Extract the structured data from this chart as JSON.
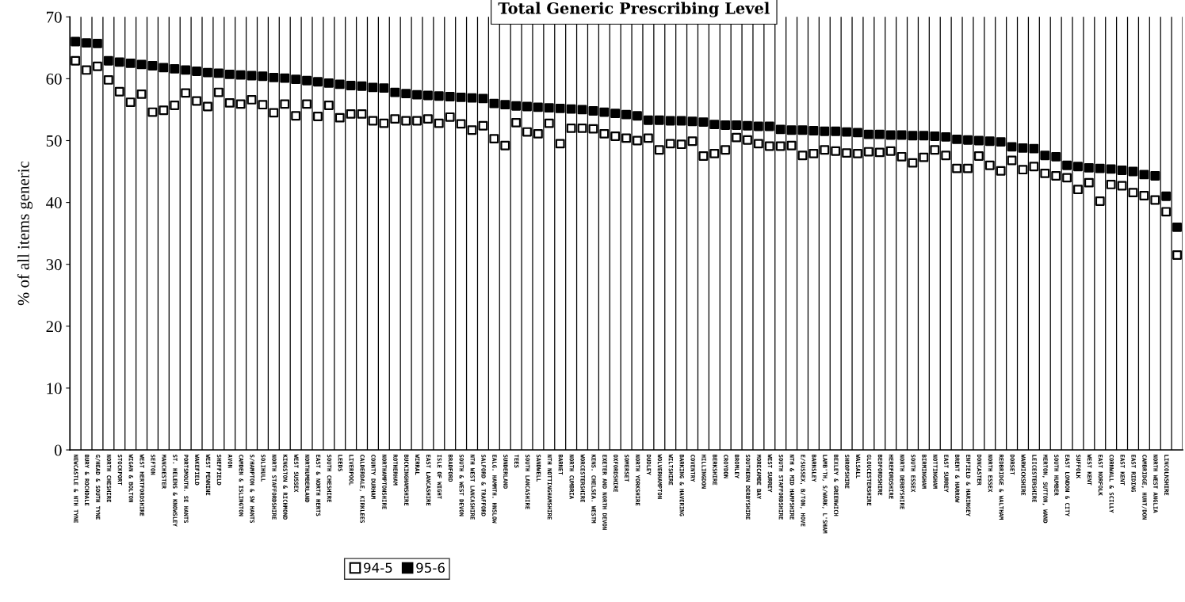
{
  "chart_data": {
    "type": "scatter",
    "title": "Total Generic Prescribing Level",
    "ylabel": "% of all items generic",
    "categories": [
      "NEWCASTLE & NTH TYNE",
      "BURY & ROCHDALE",
      "G/HEAD & SOUTH TYNE",
      "NORTH CHESHIRE",
      "STOCKPORT",
      "WIGAN & BOLTON",
      "WEST HERTFORDSHIRE",
      "SEFTON",
      "MANCHESTER",
      "ST. HELENS & KNOWSLEY",
      "PORTSMOUTH. SE HANTS",
      "WAKEFIELD",
      "WEST PENNINE",
      "SHEFFIELD",
      "AVON",
      "CAMDEN & ISLINGTON",
      "S/HAMPTON & SW HANTS",
      "SOLIHULL",
      "NORTH STAFFORDSHIRE",
      "KINGSTON & RICHMOND",
      "WEST SUSSEX",
      "NORTHUMBERLAND",
      "EAST & NORTH HERTS",
      "SOUTH CHESHIRE",
      "LEEDS",
      "LIVERPOOL",
      "CALDERDALE, KIRKLEES",
      "COUNTY DURHAM",
      "NORTHAMPTONSHIRE",
      "ROTHERHAM",
      "BUCKINGHAMSHIRE",
      "WIRRAL",
      "EAST LANCASHIRE",
      "ISLE OF WIGHT",
      "BRADFORD",
      "SOUTH & WEST DEVON",
      "NTH WEST LANCASHIRE",
      "SALFORD & TRAFFORD",
      "EALG. HAMMTH. HNSLOW",
      "SUNDERLAND",
      "TEES",
      "SOUTH LANCASHIRE",
      "SANDWELL",
      "NTH NOTTINGHAMSHIRE",
      "BARNET",
      "NORTH CUMBRIA",
      "WORCESTERSHIRE",
      "KENS. CHELSEA. WESTM",
      "EXETER AND NORTH DEVON",
      "OXFORDSHIRE",
      "SOMERSET",
      "NORTH YORKSHIRE",
      "DUDLEY",
      "WOLVERHAMPTON",
      "WILTSHIRE",
      "BARKING & HAVERING",
      "COVENTRY",
      "HILLINGDON",
      "BERKSHIRE",
      "CROYDON",
      "BROMLEY",
      "SOUTHERN DERBYSHIRE",
      "MORECAMBE BAY",
      "WEST SURREY",
      "SOUTH STAFFORDSHIRE",
      "NTH & MID HAMPSHIRE",
      "E/SUSSEX, B/TON, HOVE",
      "BARNSLEY",
      "LAMB'TH, S/WARK, L'SHAM",
      "BEXLEY & GREENWICH",
      "SHROPSHIRE",
      "WALSALL",
      "GLOUCESTERSHIRE",
      "BEDFORDSHIRE",
      "HEREFORDSHIRE",
      "NORTH DERBYSHIRE",
      "SOUTH ESSEX",
      "BIRMINGHAM",
      "NOTTINGHAM",
      "EAST SURREY",
      "BRENT & HARROW",
      "ENFIELD & HARINGEY",
      "DONCASTER",
      "NORTH ESSEX",
      "REDBRIDGE & WALTHAM",
      "DORSET",
      "WARWICKSHIRE",
      "LEICESTERSHIRE",
      "MERTON, SUTTON, WAND",
      "SOUTH HUMBER",
      "EAST LONDON & CITY",
      "SUFFOLK",
      "WEST KENT",
      "EAST NORFOLK",
      "CORNWALL & SCILLY",
      "EAST KENT",
      "EAST RIDING",
      "CAMBRIDGE, HUNT/DON",
      "NORTH WEST ANGLIA",
      "LINCOLNSHIRE",
      null
    ],
    "series": [
      {
        "name": "94-5",
        "color": "#ffffff",
        "marker": "square",
        "values": [
          62.9,
          61.4,
          62.0,
          59.8,
          57.9,
          56.2,
          57.5,
          54.6,
          54.9,
          55.7,
          57.7,
          56.4,
          55.5,
          57.8,
          56.1,
          55.9,
          56.6,
          55.8,
          54.5,
          55.9,
          54.0,
          55.9,
          53.9,
          55.7,
          53.7,
          54.3,
          54.3,
          53.2,
          52.8,
          53.5,
          53.2,
          53.2,
          53.5,
          52.8,
          53.8,
          52.7,
          51.7,
          52.4,
          50.3,
          49.2,
          52.9,
          51.4,
          51.1,
          52.8,
          49.5,
          52.0,
          52.0,
          51.9,
          51.1,
          50.7,
          50.4,
          50.0,
          50.4,
          48.5,
          49.5,
          49.4,
          49.9,
          47.5,
          47.9,
          48.5,
          50.5,
          50.1,
          49.5,
          49.1,
          49.1,
          49.2,
          47.6,
          47.9,
          48.5,
          48.3,
          48.0,
          47.9,
          48.2,
          48.1,
          48.3,
          47.4,
          46.4,
          47.3,
          48.5,
          47.6,
          45.5,
          45.5,
          47.5,
          46.0,
          45.1,
          46.8,
          45.3,
          45.8,
          44.7,
          44.3,
          44.0,
          42.1,
          43.2,
          40.2,
          42.9,
          42.7,
          41.6,
          41.1,
          40.4,
          38.5,
          31.5
        ]
      },
      {
        "name": "95-6",
        "color": "#000000",
        "marker": "square",
        "values": [
          66.0,
          65.8,
          65.7,
          62.9,
          62.7,
          62.5,
          62.3,
          62.1,
          61.8,
          61.6,
          61.4,
          61.2,
          61.0,
          60.9,
          60.7,
          60.6,
          60.5,
          60.4,
          60.2,
          60.1,
          59.9,
          59.7,
          59.5,
          59.3,
          59.1,
          58.9,
          58.8,
          58.6,
          58.5,
          57.8,
          57.6,
          57.4,
          57.3,
          57.2,
          57.1,
          57.0,
          56.9,
          56.8,
          56.0,
          55.8,
          55.6,
          55.5,
          55.4,
          55.3,
          55.2,
          55.1,
          55.0,
          54.8,
          54.6,
          54.4,
          54.2,
          54.0,
          53.3,
          53.3,
          53.2,
          53.2,
          53.1,
          53.0,
          52.6,
          52.5,
          52.5,
          52.4,
          52.3,
          52.3,
          51.8,
          51.7,
          51.7,
          51.6,
          51.5,
          51.5,
          51.4,
          51.3,
          51.0,
          51.0,
          50.9,
          50.9,
          50.8,
          50.8,
          50.7,
          50.6,
          50.2,
          50.1,
          50.0,
          49.9,
          49.8,
          49.0,
          48.8,
          48.7,
          47.6,
          47.4,
          46.0,
          45.8,
          45.6,
          45.5,
          45.4,
          45.2,
          45.0,
          44.5,
          44.3,
          41.0,
          36.0
        ]
      }
    ],
    "ylim": [
      0,
      70
    ],
    "yticks": [
      0,
      10,
      20,
      30,
      40,
      50,
      60,
      70
    ],
    "grid": "x",
    "legend": "bottom"
  }
}
